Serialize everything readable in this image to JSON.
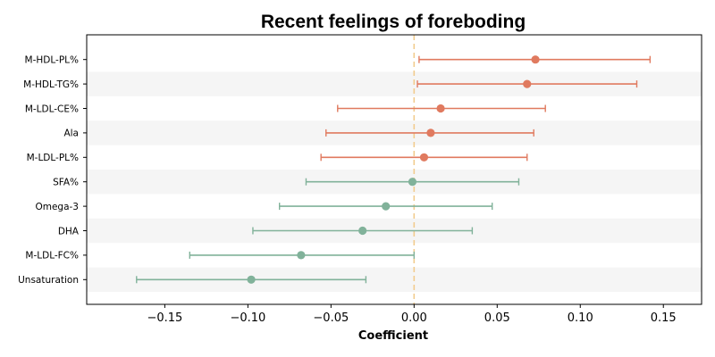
{
  "chart_data": {
    "type": "forest",
    "title": "Recent feelings of foreboding",
    "xlabel": "Coefficient",
    "ylabel": "",
    "xlim": [
      -0.197,
      0.173
    ],
    "xticks": [
      -0.15,
      -0.1,
      -0.05,
      0.0,
      0.05,
      0.1,
      0.15
    ],
    "xtick_labels": [
      "−0.15",
      "−0.10",
      "−0.05",
      "0.00",
      "0.05",
      "0.10",
      "0.15"
    ],
    "reference_line": 0.0,
    "grid": false,
    "alternating_row_shading": true,
    "colors": {
      "positive": "#e07a5f",
      "negative": "#81b29a",
      "reference_line": "#f2cc8f",
      "row_shade": "#f5f5f5"
    },
    "rows": [
      {
        "label": "M-HDL-PL%",
        "estimate": 0.073,
        "ci_low": 0.003,
        "ci_high": 0.142
      },
      {
        "label": "M-HDL-TG%",
        "estimate": 0.068,
        "ci_low": 0.002,
        "ci_high": 0.134
      },
      {
        "label": "M-LDL-CE%",
        "estimate": 0.016,
        "ci_low": -0.046,
        "ci_high": 0.079
      },
      {
        "label": "Ala",
        "estimate": 0.01,
        "ci_low": -0.053,
        "ci_high": 0.072
      },
      {
        "label": "M-LDL-PL%",
        "estimate": 0.006,
        "ci_low": -0.056,
        "ci_high": 0.068
      },
      {
        "label": "SFA%",
        "estimate": -0.001,
        "ci_low": -0.065,
        "ci_high": 0.063
      },
      {
        "label": "Omega-3",
        "estimate": -0.017,
        "ci_low": -0.081,
        "ci_high": 0.047
      },
      {
        "label": "DHA",
        "estimate": -0.031,
        "ci_low": -0.097,
        "ci_high": 0.035
      },
      {
        "label": "M-LDL-FC%",
        "estimate": -0.068,
        "ci_low": -0.135,
        "ci_high": 0.0
      },
      {
        "label": "Unsaturation",
        "estimate": -0.098,
        "ci_low": -0.167,
        "ci_high": -0.029
      }
    ]
  }
}
